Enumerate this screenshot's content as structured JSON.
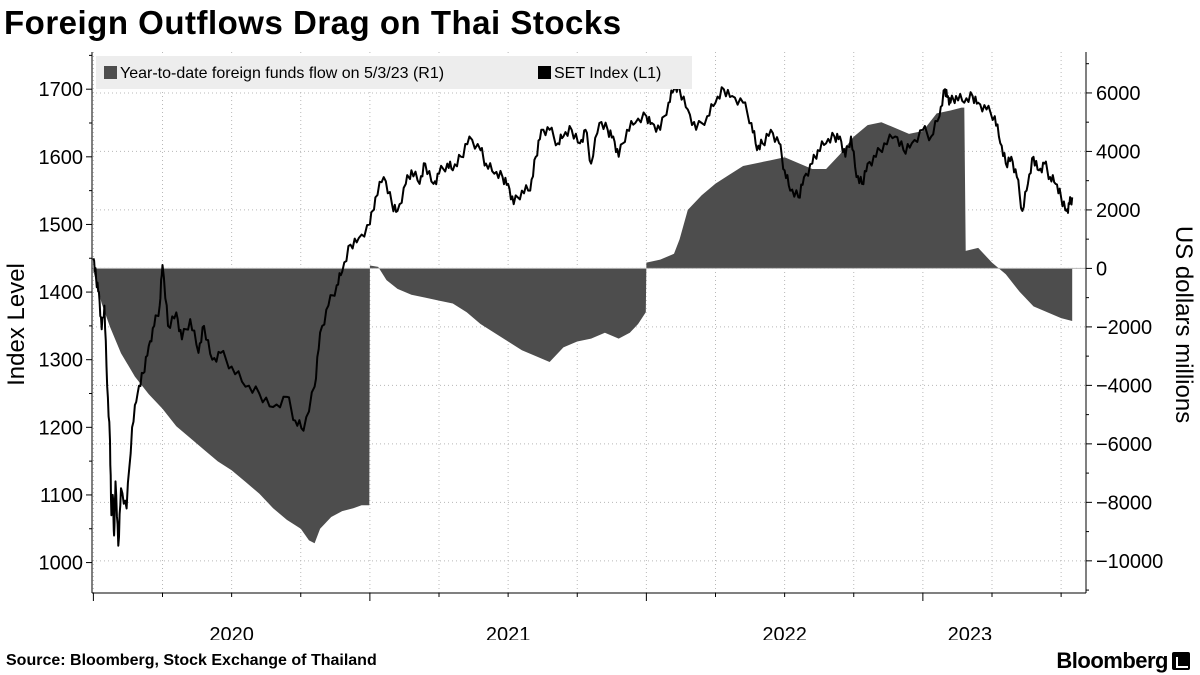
{
  "title": "Foreign Outflows Drag on Thai Stocks",
  "source": "Source: Bloomberg, Stock Exchange of Thailand",
  "brand": "Bloomberg",
  "colors": {
    "flow": "#4d4d4d",
    "index": "#000000",
    "legend_bg": "#ededed",
    "grid": "#b8b8b8"
  },
  "chart_data": {
    "type": "area",
    "legend": [
      {
        "label": "Year-to-date foreign funds flow on 5/3/23 (R1)",
        "color": "#4d4d4d"
      },
      {
        "label": "SET Index  (L1)",
        "color": "#000000"
      }
    ],
    "y_left": {
      "label": "Index Level",
      "ticks": [
        "1000",
        "1100",
        "1200",
        "1300",
        "1400",
        "1500",
        "1600",
        "1700"
      ],
      "range": [
        955,
        1755
      ]
    },
    "y_right": {
      "label": "US dollars millions",
      "ticks": [
        "-10000",
        "-8000",
        "-6000",
        "-4000",
        "-2000",
        "0",
        "2000",
        "4000",
        "6000"
      ],
      "range": [
        -11100,
        7400
      ]
    },
    "x_axis": {
      "ticks": [
        "2020",
        "2021",
        "2022",
        "2023"
      ],
      "range": [
        2019.995,
        2023.59
      ],
      "gridlines": [
        2020.0,
        2020.25,
        2020.5,
        2020.75,
        2021.0,
        2021.25,
        2021.5,
        2021.75,
        2022.0,
        2022.25,
        2022.5,
        2022.75,
        2023.0,
        2023.25,
        2023.5
      ]
    },
    "series": [
      {
        "name": "Year-to-date foreign funds flow on 5/3/23",
        "axis": "right",
        "type": "area",
        "points": [
          [
            2020.0,
            -100
          ],
          [
            2020.03,
            -1200
          ],
          [
            2020.06,
            -2000
          ],
          [
            2020.1,
            -2900
          ],
          [
            2020.15,
            -3700
          ],
          [
            2020.2,
            -4300
          ],
          [
            2020.25,
            -4800
          ],
          [
            2020.3,
            -5400
          ],
          [
            2020.35,
            -5800
          ],
          [
            2020.4,
            -6200
          ],
          [
            2020.45,
            -6600
          ],
          [
            2020.5,
            -6900
          ],
          [
            2020.55,
            -7300
          ],
          [
            2020.6,
            -7700
          ],
          [
            2020.65,
            -8200
          ],
          [
            2020.7,
            -8600
          ],
          [
            2020.75,
            -8900
          ],
          [
            2020.78,
            -9300
          ],
          [
            2020.8,
            -9400
          ],
          [
            2020.82,
            -8900
          ],
          [
            2020.86,
            -8500
          ],
          [
            2020.9,
            -8300
          ],
          [
            2020.94,
            -8200
          ],
          [
            2020.97,
            -8100
          ],
          [
            2020.998,
            -8100
          ],
          [
            2021.0,
            100
          ],
          [
            2021.03,
            50
          ],
          [
            2021.06,
            -400
          ],
          [
            2021.1,
            -700
          ],
          [
            2021.15,
            -900
          ],
          [
            2021.2,
            -1000
          ],
          [
            2021.25,
            -1100
          ],
          [
            2021.3,
            -1200
          ],
          [
            2021.35,
            -1500
          ],
          [
            2021.4,
            -1900
          ],
          [
            2021.45,
            -2200
          ],
          [
            2021.5,
            -2500
          ],
          [
            2021.55,
            -2800
          ],
          [
            2021.6,
            -3000
          ],
          [
            2021.65,
            -3200
          ],
          [
            2021.7,
            -2700
          ],
          [
            2021.75,
            -2500
          ],
          [
            2021.8,
            -2400
          ],
          [
            2021.85,
            -2200
          ],
          [
            2021.9,
            -2400
          ],
          [
            2021.94,
            -2200
          ],
          [
            2021.97,
            -1900
          ],
          [
            2021.998,
            -1500
          ],
          [
            2022.0,
            200
          ],
          [
            2022.05,
            300
          ],
          [
            2022.1,
            500
          ],
          [
            2022.12,
            1000
          ],
          [
            2022.15,
            2000
          ],
          [
            2022.2,
            2500
          ],
          [
            2022.25,
            2900
          ],
          [
            2022.3,
            3200
          ],
          [
            2022.35,
            3500
          ],
          [
            2022.4,
            3600
          ],
          [
            2022.45,
            3700
          ],
          [
            2022.5,
            3800
          ],
          [
            2022.55,
            3600
          ],
          [
            2022.6,
            3400
          ],
          [
            2022.65,
            3400
          ],
          [
            2022.7,
            3900
          ],
          [
            2022.75,
            4500
          ],
          [
            2022.8,
            4900
          ],
          [
            2022.85,
            5000
          ],
          [
            2022.9,
            4800
          ],
          [
            2022.95,
            4600
          ],
          [
            2023.0,
            4700
          ],
          [
            2023.05,
            5300
          ],
          [
            2023.1,
            5400
          ],
          [
            2023.14,
            5500
          ],
          [
            2023.15,
            5500
          ],
          [
            2023.155,
            600
          ],
          [
            2023.2,
            700
          ],
          [
            2023.25,
            200
          ],
          [
            2023.3,
            -200
          ],
          [
            2023.35,
            -800
          ],
          [
            2023.4,
            -1300
          ],
          [
            2023.45,
            -1500
          ],
          [
            2023.5,
            -1700
          ],
          [
            2023.54,
            -1800
          ]
        ]
      },
      {
        "name": "SET Index",
        "axis": "left",
        "type": "line",
        "points": [
          [
            2020.0,
            1450
          ],
          [
            2020.01,
            1420
          ],
          [
            2020.02,
            1400
          ],
          [
            2020.03,
            1345
          ],
          [
            2020.04,
            1380
          ],
          [
            2020.05,
            1260
          ],
          [
            2020.06,
            1180
          ],
          [
            2020.065,
            1070
          ],
          [
            2020.07,
            1100
          ],
          [
            2020.075,
            1040
          ],
          [
            2020.08,
            1120
          ],
          [
            2020.09,
            1025
          ],
          [
            2020.1,
            1110
          ],
          [
            2020.12,
            1080
          ],
          [
            2020.14,
            1200
          ],
          [
            2020.16,
            1250
          ],
          [
            2020.18,
            1280
          ],
          [
            2020.2,
            1320
          ],
          [
            2020.22,
            1350
          ],
          [
            2020.24,
            1380
          ],
          [
            2020.25,
            1440
          ],
          [
            2020.27,
            1350
          ],
          [
            2020.3,
            1370
          ],
          [
            2020.32,
            1330
          ],
          [
            2020.35,
            1360
          ],
          [
            2020.38,
            1310
          ],
          [
            2020.4,
            1350
          ],
          [
            2020.43,
            1300
          ],
          [
            2020.46,
            1310
          ],
          [
            2020.5,
            1290
          ],
          [
            2020.55,
            1260
          ],
          [
            2020.6,
            1250
          ],
          [
            2020.65,
            1230
          ],
          [
            2020.7,
            1245
          ],
          [
            2020.73,
            1210
          ],
          [
            2020.76,
            1195
          ],
          [
            2020.8,
            1260
          ],
          [
            2020.82,
            1340
          ],
          [
            2020.85,
            1380
          ],
          [
            2020.88,
            1410
          ],
          [
            2020.9,
            1430
          ],
          [
            2020.93,
            1470
          ],
          [
            2020.96,
            1480
          ],
          [
            2021.0,
            1500
          ],
          [
            2021.02,
            1540
          ],
          [
            2021.05,
            1570
          ],
          [
            2021.08,
            1530
          ],
          [
            2021.1,
            1520
          ],
          [
            2021.13,
            1560
          ],
          [
            2021.15,
            1580
          ],
          [
            2021.18,
            1560
          ],
          [
            2021.2,
            1590
          ],
          [
            2021.23,
            1560
          ],
          [
            2021.25,
            1575
          ],
          [
            2021.28,
            1590
          ],
          [
            2021.3,
            1580
          ],
          [
            2021.33,
            1600
          ],
          [
            2021.36,
            1630
          ],
          [
            2021.4,
            1610
          ],
          [
            2021.42,
            1590
          ],
          [
            2021.45,
            1575
          ],
          [
            2021.48,
            1570
          ],
          [
            2021.5,
            1560
          ],
          [
            2021.52,
            1530
          ],
          [
            2021.55,
            1550
          ],
          [
            2021.58,
            1550
          ],
          [
            2021.6,
            1600
          ],
          [
            2021.62,
            1640
          ],
          [
            2021.65,
            1640
          ],
          [
            2021.68,
            1620
          ],
          [
            2021.7,
            1630
          ],
          [
            2021.73,
            1640
          ],
          [
            2021.76,
            1620
          ],
          [
            2021.78,
            1640
          ],
          [
            2021.8,
            1590
          ],
          [
            2021.83,
            1650
          ],
          [
            2021.86,
            1640
          ],
          [
            2021.88,
            1630
          ],
          [
            2021.9,
            1600
          ],
          [
            2021.93,
            1640
          ],
          [
            2021.96,
            1650
          ],
          [
            2022.0,
            1660
          ],
          [
            2022.02,
            1650
          ],
          [
            2022.05,
            1640
          ],
          [
            2022.08,
            1680
          ],
          [
            2022.1,
            1700
          ],
          [
            2022.12,
            1700
          ],
          [
            2022.15,
            1670
          ],
          [
            2022.18,
            1640
          ],
          [
            2022.22,
            1660
          ],
          [
            2022.25,
            1680
          ],
          [
            2022.28,
            1700
          ],
          [
            2022.31,
            1690
          ],
          [
            2022.35,
            1680
          ],
          [
            2022.38,
            1650
          ],
          [
            2022.4,
            1610
          ],
          [
            2022.42,
            1620
          ],
          [
            2022.45,
            1640
          ],
          [
            2022.48,
            1620
          ],
          [
            2022.5,
            1580
          ],
          [
            2022.52,
            1550
          ],
          [
            2022.55,
            1540
          ],
          [
            2022.57,
            1570
          ],
          [
            2022.6,
            1590
          ],
          [
            2022.62,
            1610
          ],
          [
            2022.65,
            1620
          ],
          [
            2022.68,
            1630
          ],
          [
            2022.7,
            1630
          ],
          [
            2022.72,
            1600
          ],
          [
            2022.74,
            1630
          ],
          [
            2022.76,
            1570
          ],
          [
            2022.78,
            1560
          ],
          [
            2022.8,
            1590
          ],
          [
            2022.83,
            1600
          ],
          [
            2022.86,
            1620
          ],
          [
            2022.9,
            1630
          ],
          [
            2022.93,
            1610
          ],
          [
            2022.96,
            1620
          ],
          [
            2023.0,
            1640
          ],
          [
            2023.03,
            1630
          ],
          [
            2023.06,
            1660
          ],
          [
            2023.08,
            1700
          ],
          [
            2023.09,
            1690
          ],
          [
            2023.1,
            1680
          ],
          [
            2023.12,
            1690
          ],
          [
            2023.15,
            1680
          ],
          [
            2023.18,
            1690
          ],
          [
            2023.2,
            1680
          ],
          [
            2023.23,
            1670
          ],
          [
            2023.26,
            1660
          ],
          [
            2023.28,
            1620
          ],
          [
            2023.3,
            1590
          ],
          [
            2023.32,
            1600
          ],
          [
            2023.34,
            1570
          ],
          [
            2023.36,
            1520
          ],
          [
            2023.38,
            1560
          ],
          [
            2023.4,
            1600
          ],
          [
            2023.42,
            1580
          ],
          [
            2023.44,
            1590
          ],
          [
            2023.46,
            1570
          ],
          [
            2023.48,
            1560
          ],
          [
            2023.5,
            1540
          ],
          [
            2023.52,
            1520
          ],
          [
            2023.53,
            1530
          ],
          [
            2023.54,
            1540
          ]
        ]
      }
    ]
  }
}
